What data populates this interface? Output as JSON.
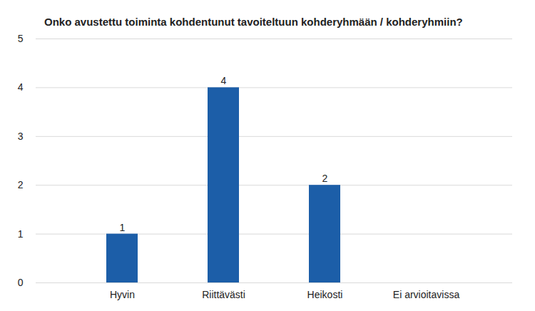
{
  "chart_data": {
    "type": "bar",
    "title": "Onko avustettu toiminta kohdentunut tavoiteltuun kohderyhmään / kohderyhmiin?",
    "categories": [
      "Hyvin",
      "Riittävästi",
      "Heikosti",
      "Ei arvioitavissa"
    ],
    "values": [
      1,
      4,
      2,
      null
    ],
    "color": "#1c5ea8",
    "ylim": [
      0,
      5
    ],
    "yticks": [
      0,
      1,
      2,
      3,
      4,
      5
    ],
    "grid": true,
    "data_labels": true
  }
}
